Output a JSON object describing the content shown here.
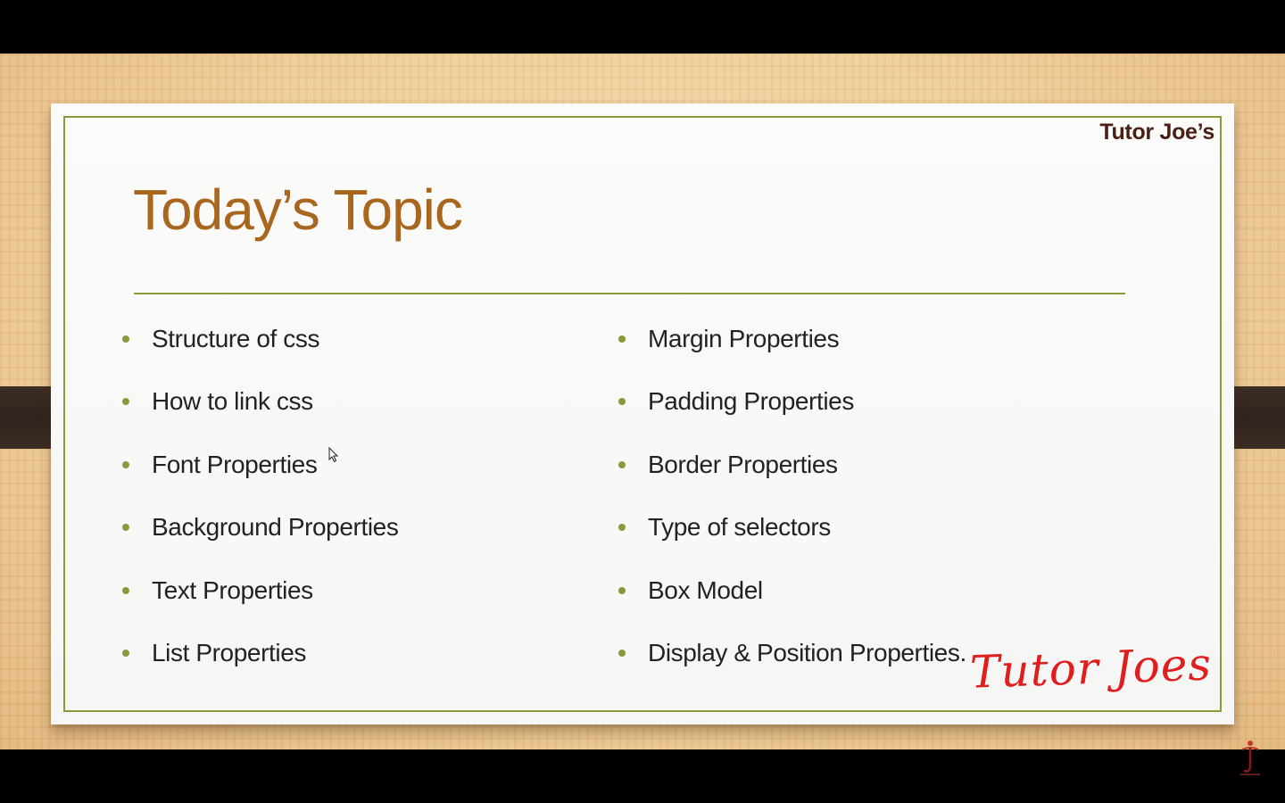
{
  "slide": {
    "brand_top": "Tutor Joe’s",
    "title": "Today’s Topic",
    "left_items": [
      "Structure of css",
      "How to link css",
      "Font Properties",
      "Background Properties",
      "Text Properties",
      "List Properties"
    ],
    "right_items": [
      "Margin Properties",
      "Padding Properties",
      "Border Properties",
      "Type of selectors",
      "Box Model",
      "Display & Position Properties."
    ],
    "signature": "Tutor Joes"
  },
  "colors": {
    "title": "#a8661f",
    "accent_green": "#8a9a3a",
    "brand_dark": "#4a1f14",
    "signature_red": "#e01e1e"
  },
  "icons": {
    "cursor": "mouse-pointer-icon",
    "corner_logo": "tutor-joes-logo-icon"
  }
}
